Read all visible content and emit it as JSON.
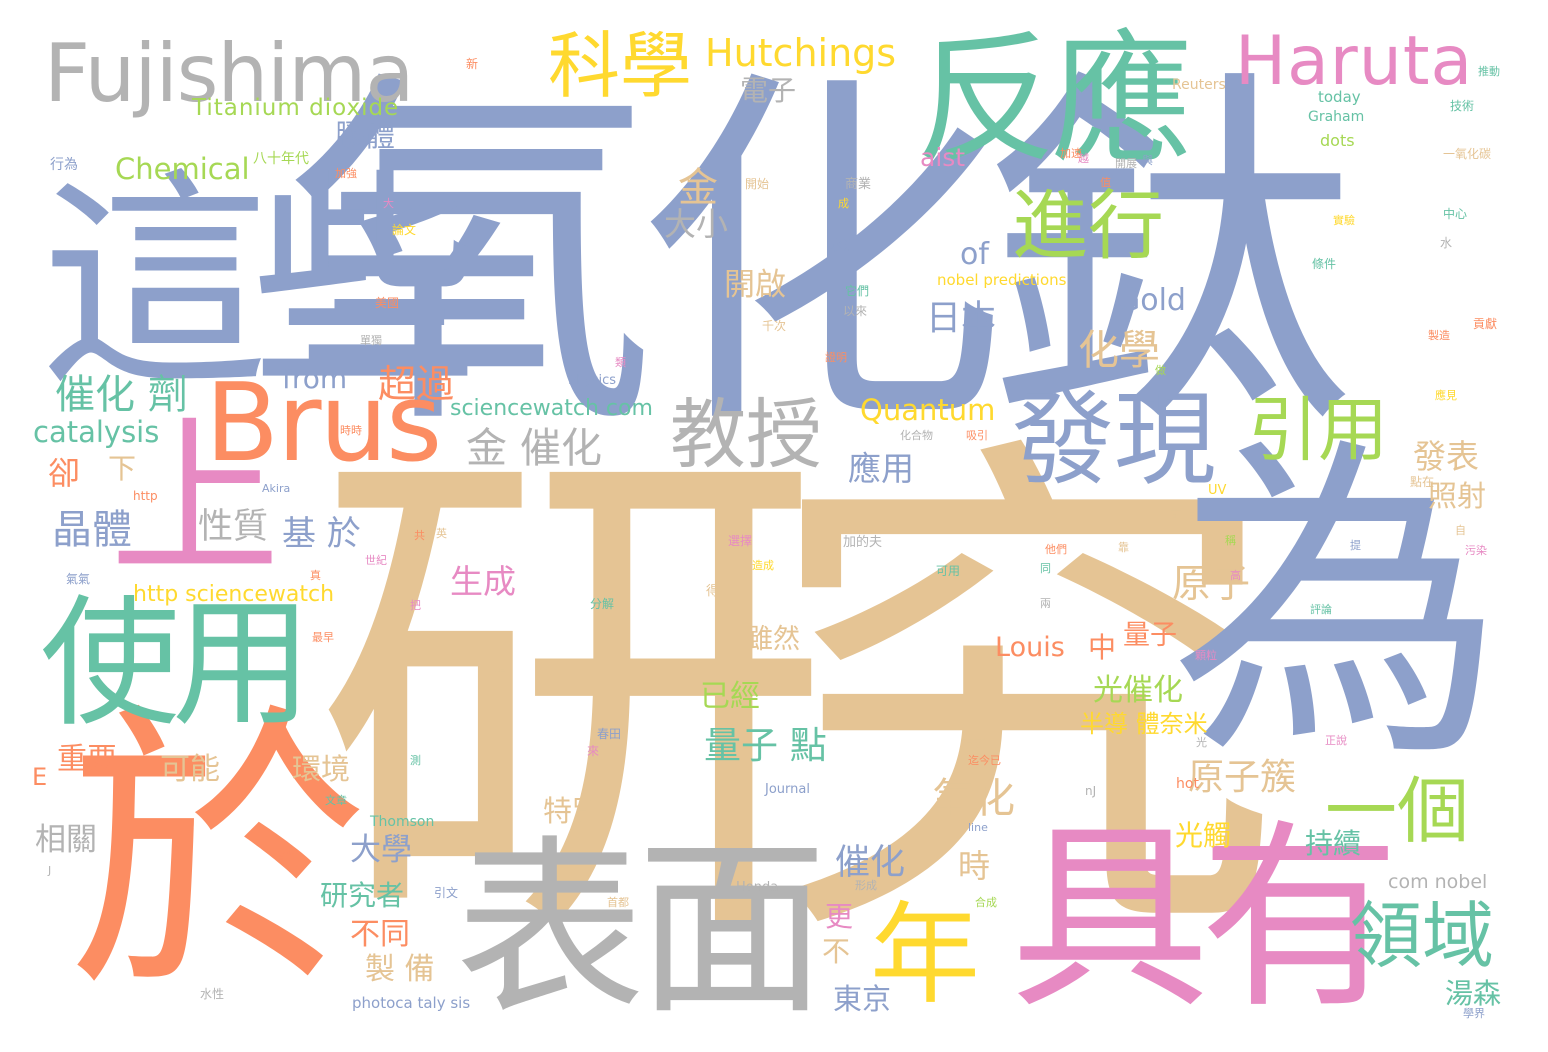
{
  "title": "",
  "colors": {
    "blue": "#8da0cb",
    "tan": "#e5c494",
    "orange": "#fc8d62",
    "green": "#66c2a5",
    "grey": "#b3b3b3",
    "pink": "#e78ac3",
    "yellow": "#ffd92f",
    "lime": "#a6d854"
  },
  "words": {
    "yanjiu": "研究",
    "yanghuatai": "氧化鈦",
    "zhexie": "這些",
    "wei": "為",
    "yu": "於",
    "biaomian": "表面",
    "juyou": "具有",
    "fanying": "反應",
    "brus": "Brus",
    "shiyong": "使用",
    "shang": "上",
    "fujishima": "Fujishima",
    "haruta": "Haruta",
    "faxian": "發現",
    "kexue": "科學",
    "jinxing": "進行",
    "jiaoshou": "教授",
    "yinyong": "引用",
    "nian": "年",
    "lingyu": "領域",
    "yige": "一個",
    "hutchings": "Hutchings",
    "titanium": "Titanium dioxide",
    "chemical": "Chemical",
    "jiaoti": "膠體",
    "dianzi": "電子",
    "cuihuaji": "催化 劑",
    "catalysis": "catalysis",
    "jincuihua": "金 催化",
    "jin": "金",
    "daxiao": "大小",
    "of": "of",
    "riben": "日本",
    "gold": "Gold",
    "huaxue": "化學",
    "chaoguo": "超過",
    "from": "from",
    "sciencewatch": "sciencewatch com",
    "quantum": "Quantum",
    "kaiqi": "開啟",
    "que": "卻",
    "xia": "下",
    "jingti": "晶體",
    "xingzhi": "性質",
    "jiyu": "基 於",
    "yingyong": "應用",
    "fabiao": "發表",
    "zhaoshe": "照射",
    "shengcheng": "生成",
    "yuanzi": "原子",
    "http_sw": "http sciencewatch",
    "suiran": "雖然",
    "louis": "Louis",
    "zhong": "中",
    "liangzi": "量子",
    "yijing": "已經",
    "guangcuihua": "光催化",
    "liangzidian": "量子 點",
    "bandaoti": "半導 體奈米",
    "zhongyao": "重要",
    "keneng": "可能",
    "huanjing": "環境",
    "yuanzicu": "原子簇",
    "e": "E",
    "yanghua": "氧化",
    "tebie": "特別",
    "xiangguan": "相關",
    "daxue": "大學",
    "guangchu": "光觸",
    "chixu": "持續",
    "cuihua": "催化",
    "shi": "時",
    "yanjiuzhe": "研究者",
    "geng": "更",
    "butong": "不同",
    "bu": "不",
    "zhibei": "製 備",
    "dongjing": "東京",
    "tangsen": "湯森",
    "photocatalysis": "photoca taly sis",
    "com_nobel": "com nobel",
    "aist": "aist",
    "nobel_predictions": "nobel predictions",
    "reuters": "Reuters",
    "today": "today",
    "graham": "Graham",
    "dots": "dots",
    "physics": "Physics",
    "akira": "Akira",
    "http": "http",
    "uv": "UV",
    "journal": "Journal",
    "thomson": "Thomson",
    "hot": "hot",
    "honda": "Honda",
    "line": "line",
    "nj": "nJ",
    "j": "J",
    "baijiu": "八十年代",
    "xingwei": "行為",
    "xin": "新",
    "jishu": "技術",
    "yiyanghuatan": "一氧化碳",
    "zhongxin": "中心",
    "shui": "水",
    "tiaojian": "條件",
    "gongxian": "貢獻",
    "shiyan": "實驗",
    "tuidong": "推動",
    "shangye": "商業",
    "shuigou": "水溝",
    "tamen": "它們",
    "yilai": "以來",
    "qianci": "千次",
    "zhengming": "證明",
    "guidian": "鋁點",
    "huahewu": "化合物",
    "xiyin": "吸引",
    "fenjie": "分解",
    "dezhu": "得主",
    "jiadefu": "加的夫",
    "keyong": "可用",
    "kezuo": "可作",
    "dianzai": "點在",
    "xuanze": "選擇",
    "zaocheng": "造成",
    "linan": "來",
    "chuntian": "春田",
    "yibu": "一步",
    "fangshi": "方式",
    "zhijin": "迄今已",
    "guangji": "光",
    "zhengjing": "正說",
    "wuran": "污染",
    "zhizao": "製造",
    "xingcheng": "形成",
    "heceng": "合成",
    "shuixing": "水性",
    "qiqi": "氣氣",
    "shiji": "世紀",
    "yinwen": "引文",
    "shoubu": "首都",
    "lunwen": "論文",
    "meiguo": "美國",
    "dandu": "單獨",
    "kaishi": "開始",
    "ke": "顆粒",
    "jiaqiang": "加強",
    "da": "大",
    "gong": "共",
    "ying": "英",
    "zhuming": "著名",
    "wenzhang": "文章",
    "kaizhan": "開展",
    "cheng": "成",
    "yue": "越",
    "zhi": "值",
    "zuo": "做",
    "yu2": "與",
    "tong": "同",
    "kao": "靠",
    "xuejie": "學界",
    "ta": "他們",
    "cheng2": "稱",
    "zuizao": "最早",
    "lei": "類",
    "jiasu": "加速",
    "pinglun": "評論",
    "yingjian": "應見",
    "shishi": "時時",
    "ba": "把",
    "ce": "測",
    "zhen": "真",
    "ti": "提",
    "gao": "高",
    "liang": "兩",
    "zi": "自"
  }
}
